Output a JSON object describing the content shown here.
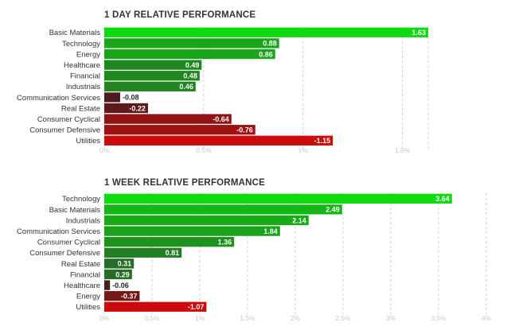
{
  "chart_data": [
    {
      "type": "bar",
      "orientation": "horizontal",
      "title": "1 DAY RELATIVE PERFORMANCE",
      "categories": [
        "Basic Materials",
        "Technology",
        "Energy",
        "Healthcare",
        "Financial",
        "Industrials",
        "Communication Services",
        "Real Estate",
        "Consumer Cyclical",
        "Consumer Defensive",
        "Utilities"
      ],
      "values": [
        1.63,
        0.88,
        0.86,
        0.49,
        0.48,
        0.46,
        -0.08,
        -0.22,
        -0.64,
        -0.76,
        -1.15
      ],
      "value_labels": [
        "1.63",
        "0.88",
        "0.86",
        "0.49",
        "0.48",
        "0.46",
        "-0.08",
        "-0.22",
        "-0.64",
        "-0.76",
        "-1.15"
      ],
      "xticks": [
        "0%",
        "0.5%",
        "1%",
        "1.5%"
      ],
      "xlim": [
        0,
        1.63
      ],
      "grid": true,
      "note": "bar length shows magnitude of value; positive bars green, negative bars red"
    },
    {
      "type": "bar",
      "orientation": "horizontal",
      "title": "1 WEEK RELATIVE PERFORMANCE",
      "categories": [
        "Technology",
        "Basic Materials",
        "Industrials",
        "Communication Services",
        "Consumer Cyclical",
        "Consumer Defensive",
        "Real Estate",
        "Financial",
        "Healthcare",
        "Energy",
        "Utilities"
      ],
      "values": [
        3.64,
        2.49,
        2.14,
        1.84,
        1.36,
        0.81,
        0.31,
        0.29,
        -0.06,
        -0.37,
        -1.07
      ],
      "value_labels": [
        "3.64",
        "2.49",
        "2.14",
        "1.84",
        "1.36",
        "0.81",
        "0.31",
        "0.29",
        "-0.06",
        "-0.37",
        "-1.07"
      ],
      "xticks": [
        "0%",
        "0.5%",
        "1%",
        "1.5%",
        "2%",
        "2.5%",
        "3%",
        "3.5%",
        "4%"
      ],
      "xlim": [
        0,
        4
      ],
      "grid": true
    }
  ],
  "colors": {
    "positive_strong": "#0ddb0d",
    "positive_weak": "#2a5e2a",
    "negative_weak": "#3d1f22",
    "negative_strong": "#cc0a0a",
    "grid": "#d0d0d0",
    "title": "#333333"
  }
}
